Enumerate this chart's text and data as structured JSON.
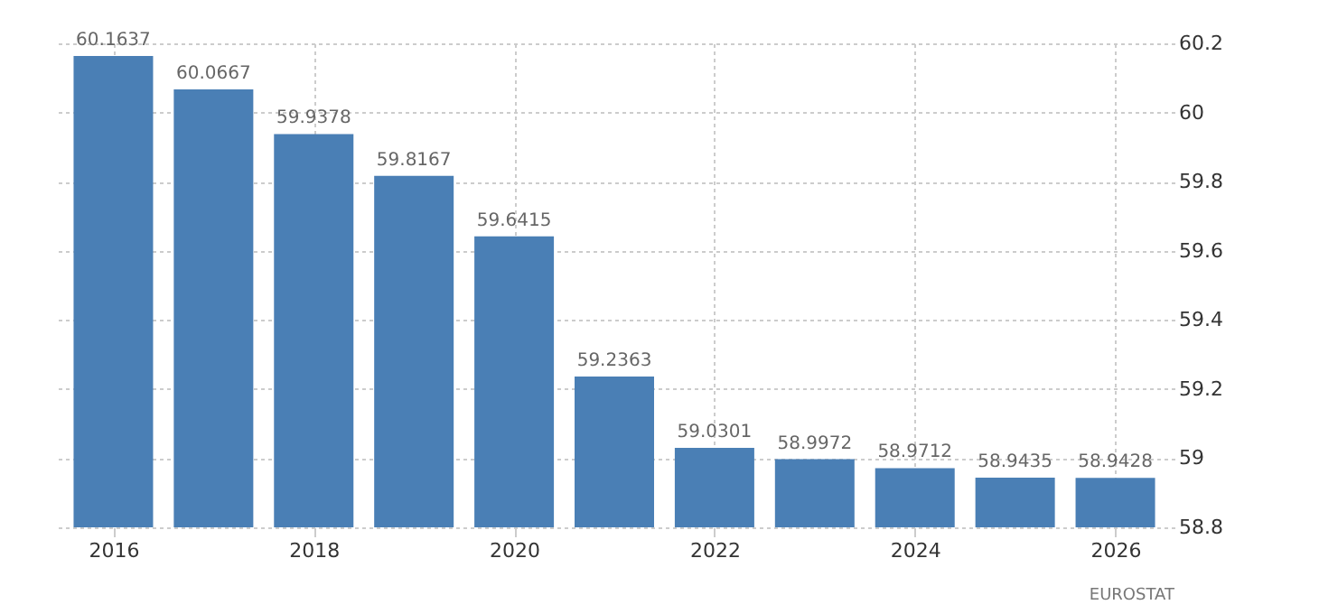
{
  "chart_data": {
    "type": "bar",
    "categories": [
      "2016",
      null,
      "2018",
      null,
      "2020",
      null,
      "2022",
      null,
      "2024",
      null,
      "2026"
    ],
    "values": [
      60.1637,
      60.0667,
      59.9378,
      59.8167,
      59.6415,
      59.2363,
      59.0301,
      58.9972,
      58.9712,
      58.9435,
      58.9428
    ],
    "color": "#4a7fb5",
    "ylim": [
      58.8,
      60.2
    ],
    "yticks": [
      58.8,
      59,
      59.2,
      59.4,
      59.6,
      59.8,
      60,
      60.2
    ],
    "grid": true,
    "data_labels": true,
    "annotations": [
      "EUROSTAT"
    ]
  }
}
